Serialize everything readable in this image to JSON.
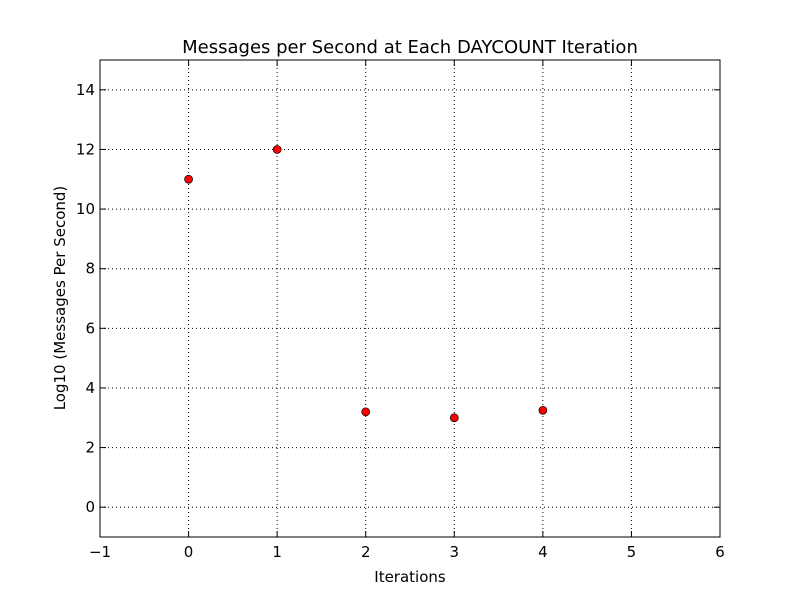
{
  "chart_data": {
    "type": "scatter",
    "title": "Messages per Second at Each DAYCOUNT Iteration",
    "xlabel": "Iterations",
    "ylabel": "Log10 (Messages Per Second)",
    "xlim": [
      -1,
      6
    ],
    "ylim": [
      -1,
      15
    ],
    "xticks": [
      -1,
      0,
      1,
      2,
      3,
      4,
      5,
      6
    ],
    "xtick_labels": [
      "−1",
      "0",
      "1",
      "2",
      "3",
      "4",
      "5",
      "6"
    ],
    "yticks": [
      0,
      2,
      4,
      6,
      8,
      10,
      12,
      14
    ],
    "ytick_labels": [
      "0",
      "2",
      "4",
      "6",
      "8",
      "10",
      "12",
      "14"
    ],
    "grid": true,
    "series": [
      {
        "color": "#ff0000",
        "x": [
          0,
          1,
          2,
          3,
          4
        ],
        "y": [
          11.0,
          12.0,
          3.2,
          3.0,
          3.25
        ]
      }
    ]
  }
}
